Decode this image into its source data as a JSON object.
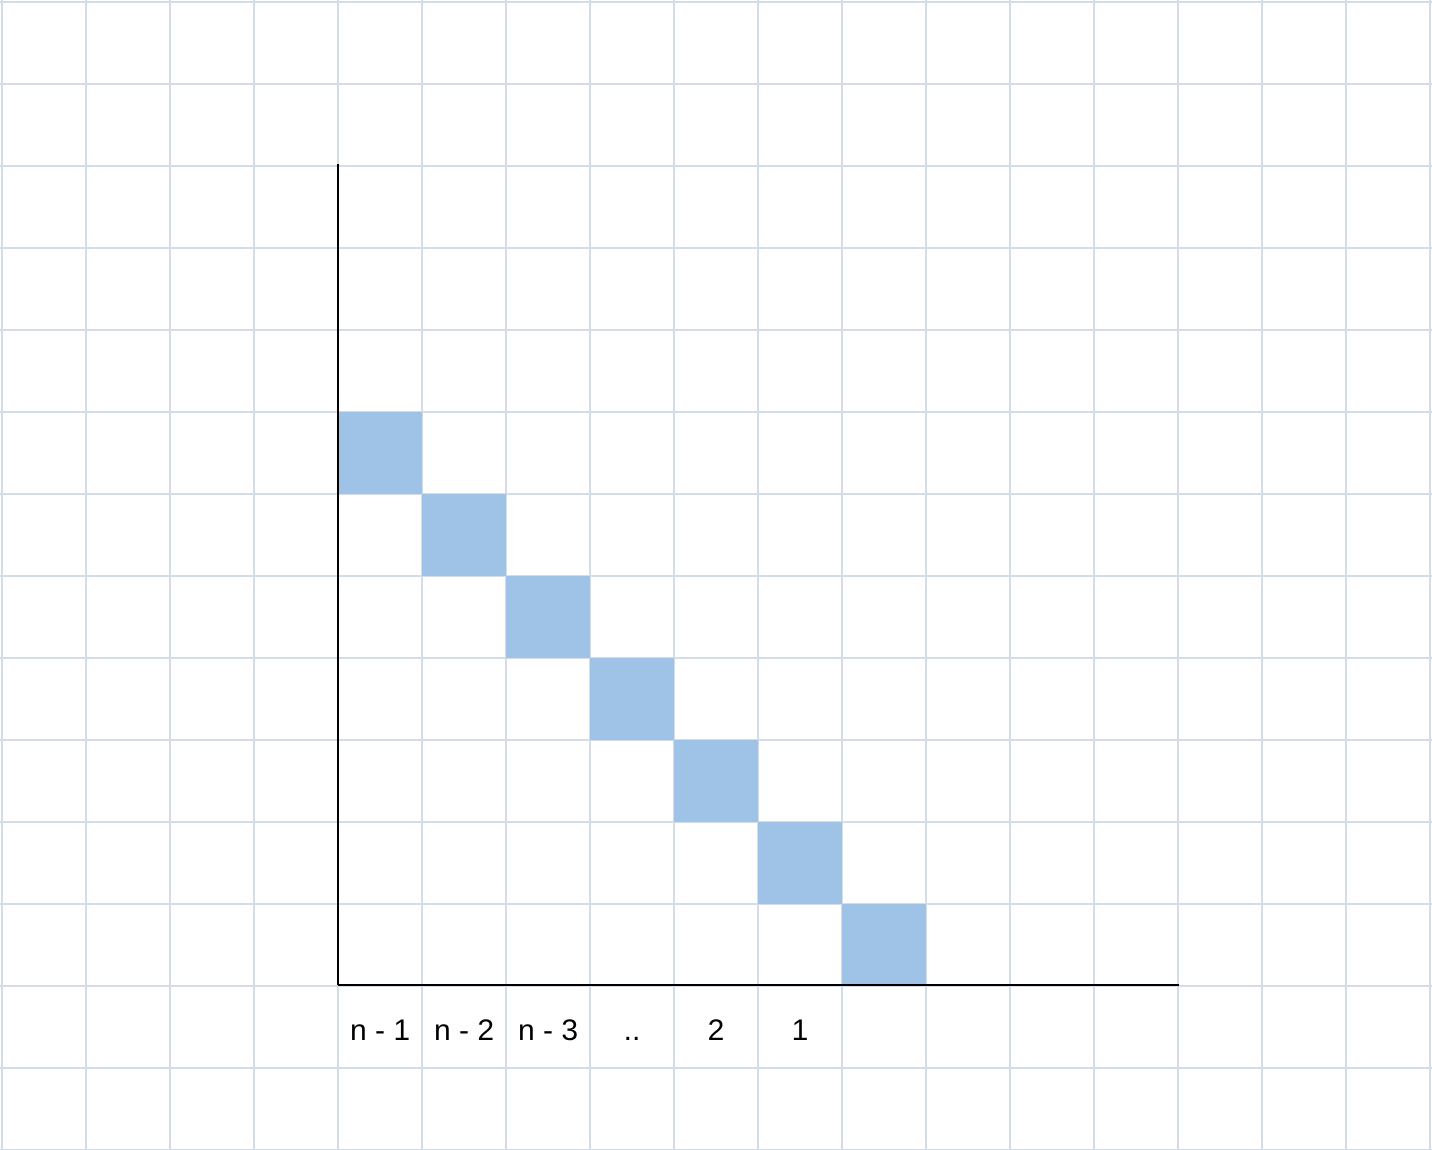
{
  "diagram": {
    "grid_columns": 17,
    "grid_rows": 14,
    "colors": {
      "background": "#ffffff",
      "grid_line": "#d4dce8",
      "highlight": "#9fc3e7",
      "axis": "#000000",
      "text": "#000000"
    },
    "highlighted_cells": [
      {
        "col": 4,
        "row": 5
      },
      {
        "col": 5,
        "row": 6
      },
      {
        "col": 6,
        "row": 7
      },
      {
        "col": 7,
        "row": 8
      },
      {
        "col": 8,
        "row": 9
      },
      {
        "col": 9,
        "row": 10
      },
      {
        "col": 10,
        "row": 11
      }
    ],
    "axis_labels": [
      "n - 1",
      "n - 2",
      "n - 3",
      "..",
      "2",
      "1"
    ]
  }
}
